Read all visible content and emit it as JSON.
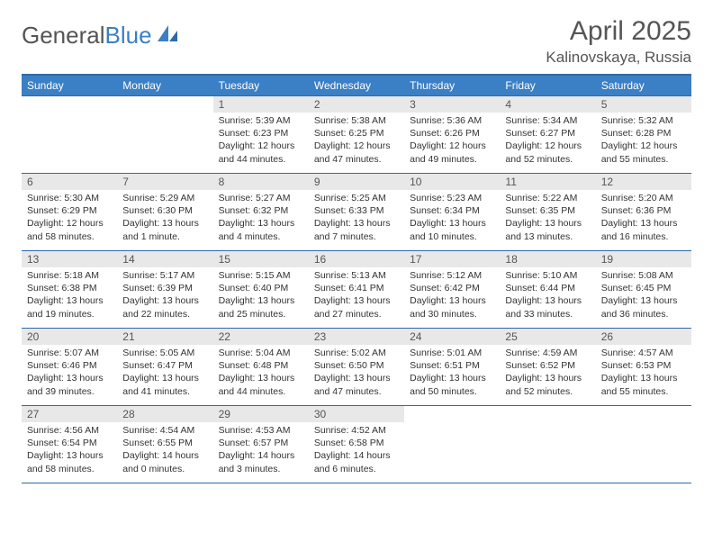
{
  "logo": {
    "text1": "General",
    "text2": "Blue"
  },
  "title": {
    "month": "April 2025",
    "location": "Kalinovskaya, Russia"
  },
  "colors": {
    "header_bg": "#3b7fc4",
    "header_border": "#2e6ba8",
    "daynum_bg": "#e8e8e8",
    "text": "#333333"
  },
  "daysOfWeek": [
    "Sunday",
    "Monday",
    "Tuesday",
    "Wednesday",
    "Thursday",
    "Friday",
    "Saturday"
  ],
  "weeks": [
    [
      null,
      null,
      {
        "n": "1",
        "sr": "5:39 AM",
        "ss": "6:23 PM",
        "dl": "12 hours and 44 minutes."
      },
      {
        "n": "2",
        "sr": "5:38 AM",
        "ss": "6:25 PM",
        "dl": "12 hours and 47 minutes."
      },
      {
        "n": "3",
        "sr": "5:36 AM",
        "ss": "6:26 PM",
        "dl": "12 hours and 49 minutes."
      },
      {
        "n": "4",
        "sr": "5:34 AM",
        "ss": "6:27 PM",
        "dl": "12 hours and 52 minutes."
      },
      {
        "n": "5",
        "sr": "5:32 AM",
        "ss": "6:28 PM",
        "dl": "12 hours and 55 minutes."
      }
    ],
    [
      {
        "n": "6",
        "sr": "5:30 AM",
        "ss": "6:29 PM",
        "dl": "12 hours and 58 minutes."
      },
      {
        "n": "7",
        "sr": "5:29 AM",
        "ss": "6:30 PM",
        "dl": "13 hours and 1 minute."
      },
      {
        "n": "8",
        "sr": "5:27 AM",
        "ss": "6:32 PM",
        "dl": "13 hours and 4 minutes."
      },
      {
        "n": "9",
        "sr": "5:25 AM",
        "ss": "6:33 PM",
        "dl": "13 hours and 7 minutes."
      },
      {
        "n": "10",
        "sr": "5:23 AM",
        "ss": "6:34 PM",
        "dl": "13 hours and 10 minutes."
      },
      {
        "n": "11",
        "sr": "5:22 AM",
        "ss": "6:35 PM",
        "dl": "13 hours and 13 minutes."
      },
      {
        "n": "12",
        "sr": "5:20 AM",
        "ss": "6:36 PM",
        "dl": "13 hours and 16 minutes."
      }
    ],
    [
      {
        "n": "13",
        "sr": "5:18 AM",
        "ss": "6:38 PM",
        "dl": "13 hours and 19 minutes."
      },
      {
        "n": "14",
        "sr": "5:17 AM",
        "ss": "6:39 PM",
        "dl": "13 hours and 22 minutes."
      },
      {
        "n": "15",
        "sr": "5:15 AM",
        "ss": "6:40 PM",
        "dl": "13 hours and 25 minutes."
      },
      {
        "n": "16",
        "sr": "5:13 AM",
        "ss": "6:41 PM",
        "dl": "13 hours and 27 minutes."
      },
      {
        "n": "17",
        "sr": "5:12 AM",
        "ss": "6:42 PM",
        "dl": "13 hours and 30 minutes."
      },
      {
        "n": "18",
        "sr": "5:10 AM",
        "ss": "6:44 PM",
        "dl": "13 hours and 33 minutes."
      },
      {
        "n": "19",
        "sr": "5:08 AM",
        "ss": "6:45 PM",
        "dl": "13 hours and 36 minutes."
      }
    ],
    [
      {
        "n": "20",
        "sr": "5:07 AM",
        "ss": "6:46 PM",
        "dl": "13 hours and 39 minutes."
      },
      {
        "n": "21",
        "sr": "5:05 AM",
        "ss": "6:47 PM",
        "dl": "13 hours and 41 minutes."
      },
      {
        "n": "22",
        "sr": "5:04 AM",
        "ss": "6:48 PM",
        "dl": "13 hours and 44 minutes."
      },
      {
        "n": "23",
        "sr": "5:02 AM",
        "ss": "6:50 PM",
        "dl": "13 hours and 47 minutes."
      },
      {
        "n": "24",
        "sr": "5:01 AM",
        "ss": "6:51 PM",
        "dl": "13 hours and 50 minutes."
      },
      {
        "n": "25",
        "sr": "4:59 AM",
        "ss": "6:52 PM",
        "dl": "13 hours and 52 minutes."
      },
      {
        "n": "26",
        "sr": "4:57 AM",
        "ss": "6:53 PM",
        "dl": "13 hours and 55 minutes."
      }
    ],
    [
      {
        "n": "27",
        "sr": "4:56 AM",
        "ss": "6:54 PM",
        "dl": "13 hours and 58 minutes."
      },
      {
        "n": "28",
        "sr": "4:54 AM",
        "ss": "6:55 PM",
        "dl": "14 hours and 0 minutes."
      },
      {
        "n": "29",
        "sr": "4:53 AM",
        "ss": "6:57 PM",
        "dl": "14 hours and 3 minutes."
      },
      {
        "n": "30",
        "sr": "4:52 AM",
        "ss": "6:58 PM",
        "dl": "14 hours and 6 minutes."
      },
      null,
      null,
      null
    ]
  ],
  "labels": {
    "sunrise": "Sunrise: ",
    "sunset": "Sunset: ",
    "daylight": "Daylight: "
  }
}
